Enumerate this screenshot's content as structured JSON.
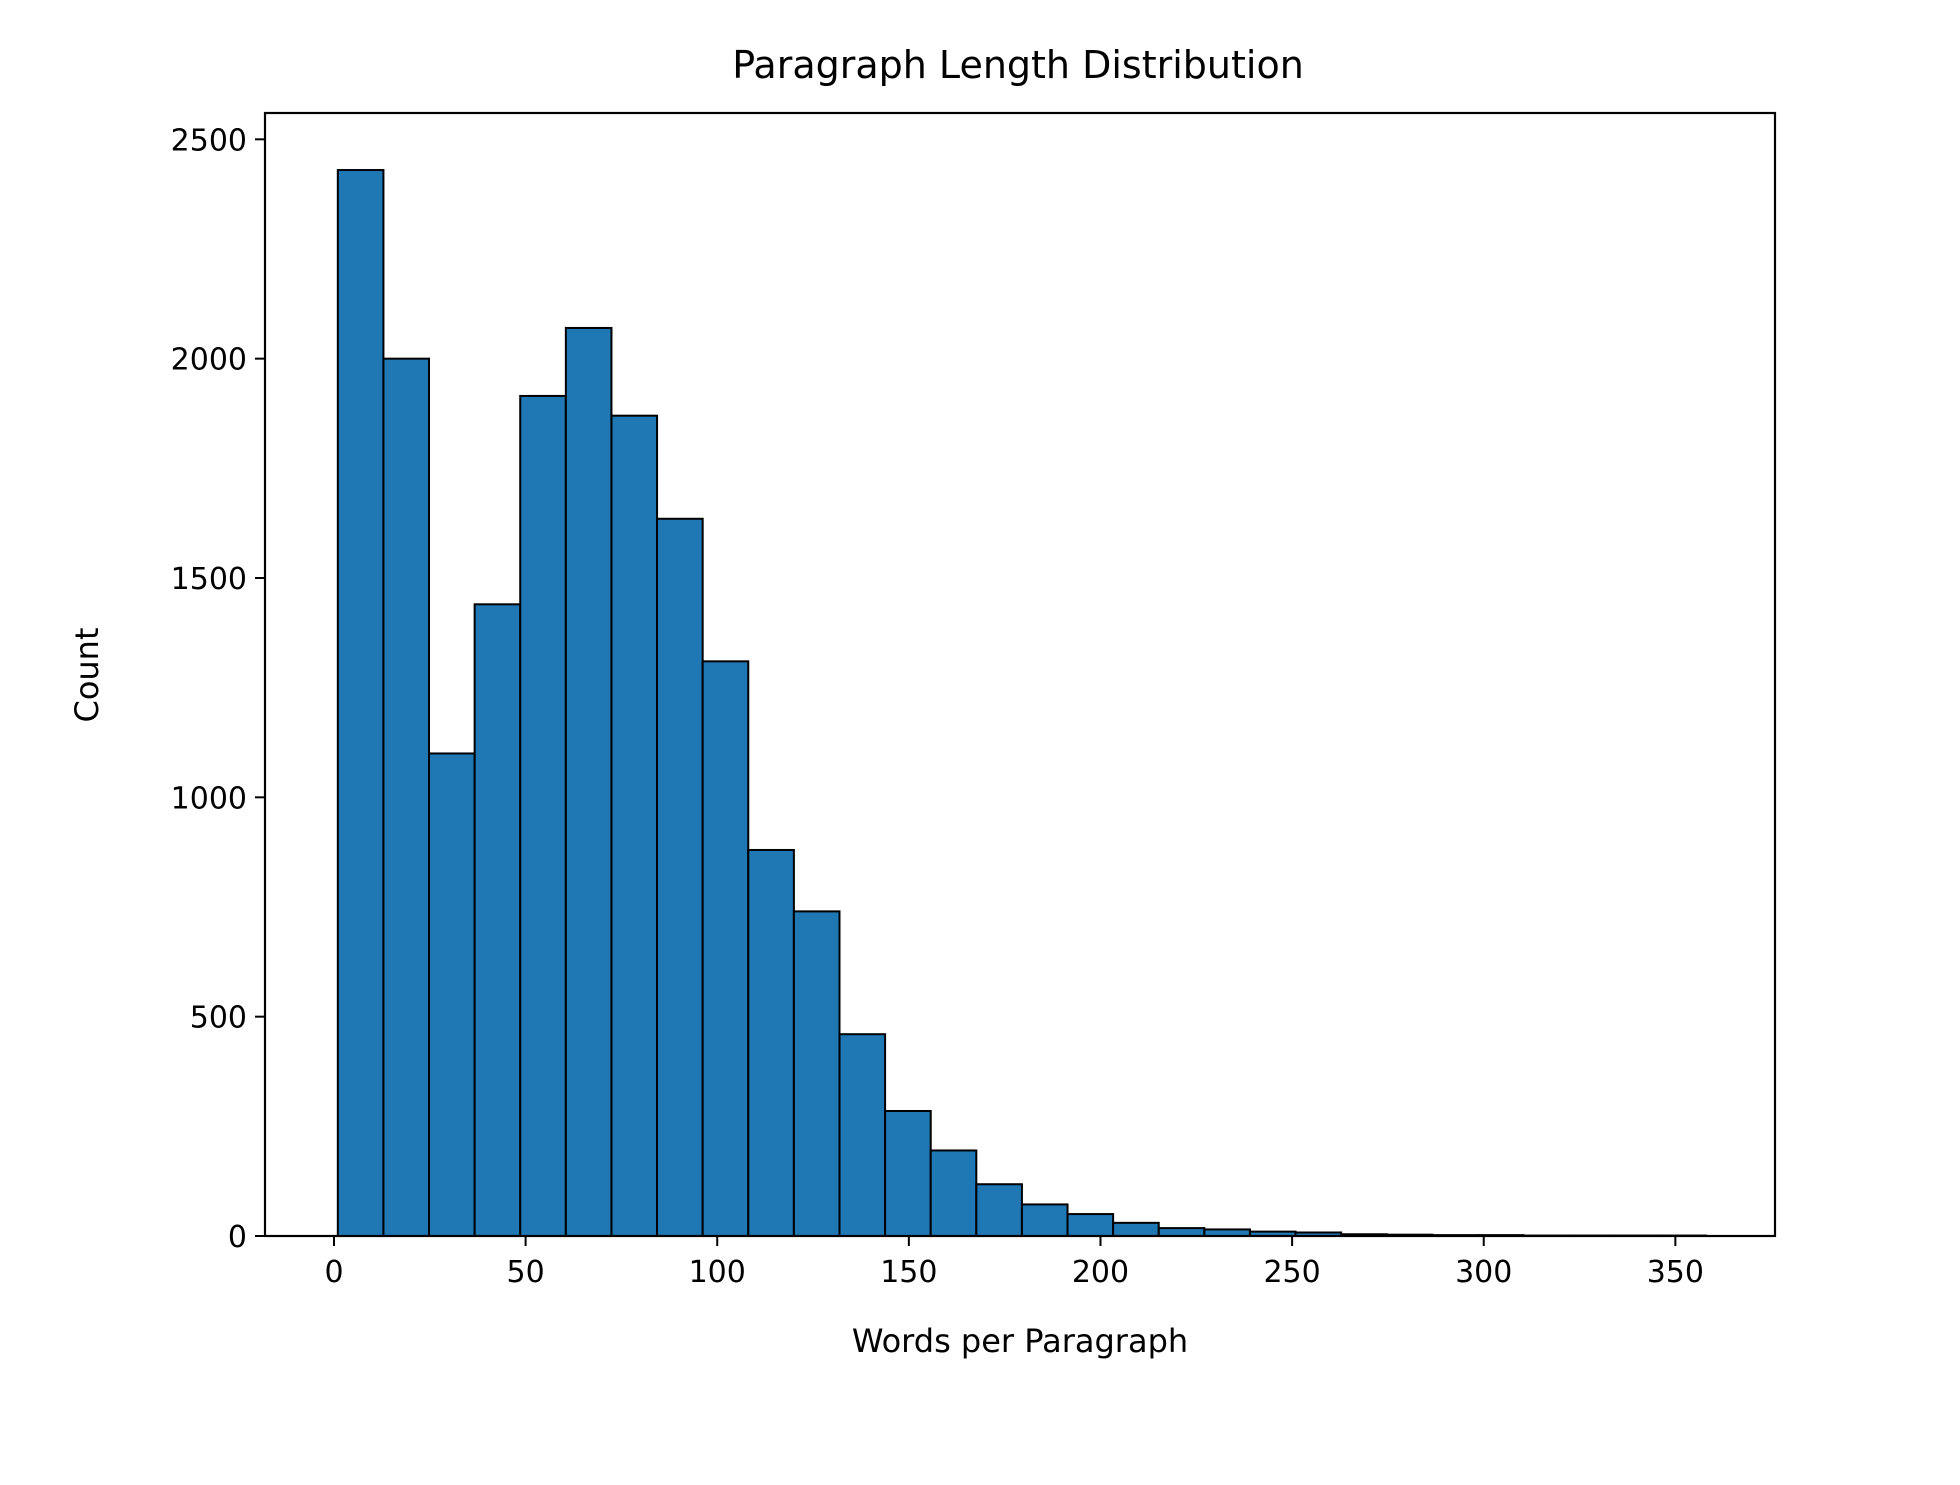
{
  "chart_data": {
    "type": "bar",
    "title": "Paragraph Length Distribution",
    "xlabel": "Words per Paragraph",
    "ylabel": "Count",
    "xlim": [
      -18,
      376
    ],
    "ylim": [
      0,
      2560
    ],
    "xticks": [
      0,
      50,
      100,
      150,
      200,
      250,
      300,
      350
    ],
    "yticks": [
      0,
      500,
      1000,
      1500,
      2000,
      2500
    ],
    "bar_color": "#1f77b4",
    "edge_color": "#000000",
    "bin_edges": [
      1,
      12.9,
      24.8,
      36.7,
      48.6,
      60.5,
      72.4,
      84.3,
      96.2,
      108.1,
      120,
      131.9,
      143.8,
      155.7,
      167.6,
      179.5,
      191.4,
      203.3,
      215.2,
      227.1,
      239,
      250.9,
      262.8,
      274.7,
      286.6,
      298.5,
      310.4,
      322.3,
      334.2,
      346.1,
      358
    ],
    "values": [
      2430,
      2000,
      1100,
      1440,
      1915,
      2070,
      1870,
      1635,
      1310,
      880,
      740,
      460,
      285,
      195,
      118,
      72,
      50,
      30,
      18,
      15,
      10,
      8,
      4,
      3,
      2,
      2,
      1,
      1,
      1,
      1
    ]
  }
}
